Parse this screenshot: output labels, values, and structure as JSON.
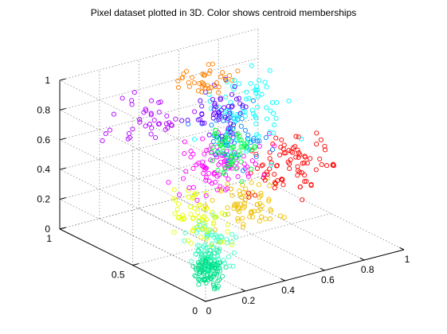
{
  "chart_data": {
    "type": "scatter",
    "title": "Pixel dataset plotted in 3D. Color shows centroid memberships",
    "xlabel": "",
    "ylabel": "",
    "zlabel": "",
    "xlim": [
      0,
      1
    ],
    "ylim": [
      0,
      1
    ],
    "zlim": [
      0,
      1
    ],
    "x_ticks": [
      "0",
      "0.2",
      "0.4",
      "0.6",
      "0.8",
      "1"
    ],
    "y_ticks": [
      "0",
      "0.5",
      "1"
    ],
    "z_ticks": [
      "0",
      "0.2",
      "0.4",
      "0.6",
      "0.8",
      "1"
    ],
    "grid": true,
    "marker": "open-circle",
    "series": [
      {
        "color": "#00e08a",
        "x_range": [
          0.02,
          0.14
        ],
        "y_range": [
          0.0,
          0.18
        ],
        "z_range": [
          0.0,
          0.3
        ],
        "count": 120
      },
      {
        "color": "#40ffc8",
        "x_range": [
          0.05,
          0.3
        ],
        "y_range": [
          0.05,
          0.35
        ],
        "z_range": [
          0.02,
          0.45
        ],
        "count": 70
      },
      {
        "color": "#e6ff00",
        "x_range": [
          0.05,
          0.3
        ],
        "y_range": [
          0.1,
          0.45
        ],
        "z_range": [
          0.18,
          0.55
        ],
        "count": 65
      },
      {
        "color": "#f0c000",
        "x_range": [
          0.2,
          0.55
        ],
        "y_range": [
          0.1,
          0.4
        ],
        "z_range": [
          0.2,
          0.6
        ],
        "count": 70
      },
      {
        "color": "#ff0000",
        "x_range": [
          0.45,
          0.85
        ],
        "y_range": [
          0.15,
          0.45
        ],
        "z_range": [
          0.3,
          0.8
        ],
        "count": 85
      },
      {
        "color": "#ff00ff",
        "x_range": [
          0.2,
          0.6
        ],
        "y_range": [
          0.25,
          0.65
        ],
        "z_range": [
          0.35,
          0.8
        ],
        "count": 95
      },
      {
        "color": "#0080ff",
        "x_range": [
          0.3,
          0.65
        ],
        "y_range": [
          0.3,
          0.6
        ],
        "z_range": [
          0.55,
          0.95
        ],
        "count": 55
      },
      {
        "color": "#00ffff",
        "x_range": [
          0.45,
          0.9
        ],
        "y_range": [
          0.4,
          0.85
        ],
        "z_range": [
          0.4,
          1.0
        ],
        "count": 75
      },
      {
        "color": "#00ff40",
        "x_range": [
          0.35,
          0.6
        ],
        "y_range": [
          0.35,
          0.6
        ],
        "z_range": [
          0.45,
          0.8
        ],
        "count": 60
      },
      {
        "color": "#6000ff",
        "x_range": [
          0.35,
          0.65
        ],
        "y_range": [
          0.45,
          0.75
        ],
        "z_range": [
          0.65,
          1.0
        ],
        "count": 50
      },
      {
        "color": "#ff8000",
        "x_range": [
          0.45,
          0.7
        ],
        "y_range": [
          0.6,
          0.95
        ],
        "z_range": [
          0.8,
          1.0
        ],
        "count": 40
      },
      {
        "color": "#b000ff",
        "x_range": [
          0.05,
          0.45
        ],
        "y_range": [
          0.55,
          0.95
        ],
        "z_range": [
          0.55,
          1.0
        ],
        "count": 40
      }
    ]
  }
}
